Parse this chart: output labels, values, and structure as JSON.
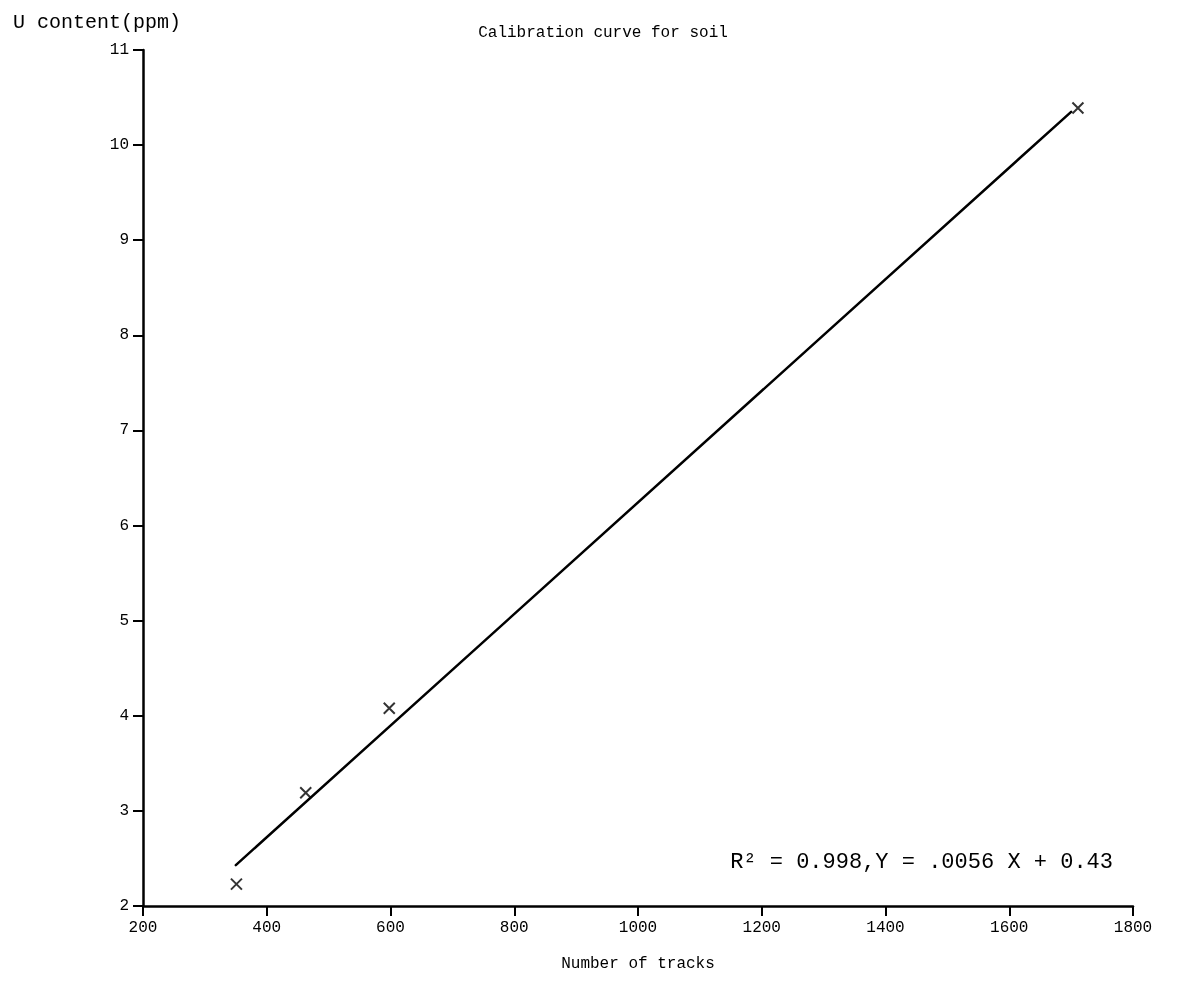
{
  "chart_data": {
    "type": "scatter",
    "title": "Calibration curve for soil",
    "xlabel": "Number of tracks",
    "ylabel": "U content(ppm)",
    "annotations": [
      "R² = 0.998,Y = .0056 X + 0.43"
    ],
    "series": [
      {
        "color": "#000000",
        "marker": "cross",
        "x": [
          351,
          463,
          598,
          1711
        ],
        "values": [
          2.23,
          3.19,
          4.08,
          10.39
        ]
      },
      {
        "type": "line",
        "color": "#000000",
        "marker": "none",
        "line_style": "solid",
        "x": [
          350,
          1700
        ],
        "values": [
          2.43,
          10.35
        ]
      }
    ],
    "xlim": [
      200,
      1800
    ],
    "xticks": [
      200,
      400,
      600,
      800,
      1000,
      1200,
      1400,
      1600,
      1800
    ],
    "ylim": [
      2,
      11
    ],
    "yticks": [
      2,
      3,
      4,
      5,
      6,
      7,
      8,
      9,
      10,
      11
    ],
    "grid": false
  }
}
